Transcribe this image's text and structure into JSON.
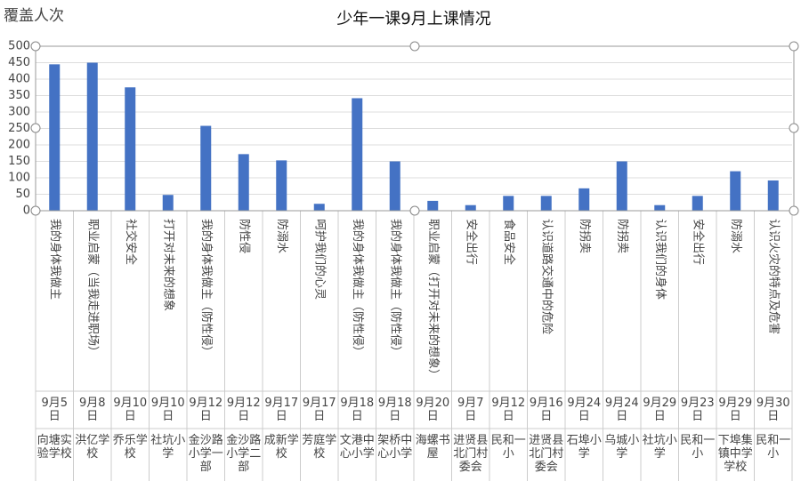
{
  "chart_data": {
    "type": "bar",
    "title": "少年一课9月上课情况",
    "y_label": "覆盖人次",
    "categories": [
      {
        "topic": "我的身体我做主",
        "date": "9月5日",
        "school": "向塘实验学校"
      },
      {
        "topic": "职业启蒙（当我走进职场）",
        "date": "9月8日",
        "school": "洪亿学校"
      },
      {
        "topic": "社交安全",
        "date": "9月10日",
        "school": "乔乐学校"
      },
      {
        "topic": "打开对未来的想象",
        "date": "9月10日",
        "school": "社坑小学"
      },
      {
        "topic": "我的身体我做主（防性侵）",
        "date": "9月12日",
        "school": "金沙路小学一部"
      },
      {
        "topic": "防性侵",
        "date": "9月12日",
        "school": "金沙路小学二部"
      },
      {
        "topic": "防溺水",
        "date": "9月17日",
        "school": "成新学校"
      },
      {
        "topic": "呵护我们的心灵",
        "date": "9月17日",
        "school": "芳庭学校"
      },
      {
        "topic": "我的身体我做主（防性侵）",
        "date": "9月18日",
        "school": "文港中心小学"
      },
      {
        "topic": "我的身体我做主（防性侵）",
        "date": "9月18日",
        "school": "架桥中心小学"
      },
      {
        "topic": "职业启蒙（打开对未来的想象）",
        "date": "9月20日",
        "school": "海螺书屋"
      },
      {
        "topic": "安全出行",
        "date": "9月7日",
        "school": "进贤县北门村委会"
      },
      {
        "topic": "食品安全",
        "date": "9月12日",
        "school": "民和一小"
      },
      {
        "topic": "认识道路交通中的危险",
        "date": "9月16日",
        "school": "进贤县北门村委会"
      },
      {
        "topic": "防拐卖",
        "date": "9月24日",
        "school": "石埠小学"
      },
      {
        "topic": "防拐卖",
        "date": "9月24日",
        "school": "乌城小学"
      },
      {
        "topic": "认识我们的身体",
        "date": "9月29日",
        "school": "社坑小学"
      },
      {
        "topic": "安全出行",
        "date": "9月23日",
        "school": "民和一小"
      },
      {
        "topic": "防溺水",
        "date": "9月29日",
        "school": "下埠集镇中学学校"
      },
      {
        "topic": "认识火灾的特点及危害",
        "date": "9月30日",
        "school": "民和一小"
      }
    ],
    "values": [
      445,
      450,
      375,
      48,
      258,
      172,
      153,
      21,
      342,
      150,
      30,
      17,
      45,
      45,
      68,
      150,
      17,
      45,
      120,
      92
    ],
    "color": "#4472c4",
    "ylim": [
      0,
      500
    ],
    "yticks": [
      0,
      50,
      100,
      150,
      200,
      250,
      300,
      350,
      400,
      450,
      500
    ],
    "grid": true
  }
}
